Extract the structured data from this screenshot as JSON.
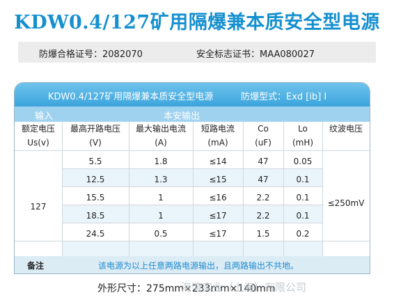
{
  "title": "KDW0.4/127矿用隔爆兼本质安全型电源",
  "certs": {
    "explosion_proof": "防爆合格证号：2082070",
    "safety_mark": "安全标志证书：MAA080027"
  },
  "table": {
    "header_name": "KDW0.4/127矿用隔爆兼本质安全型电源",
    "header_type": "防爆型式：Exd [ib] I",
    "input_label": "输入",
    "output_label": "本安输出",
    "columns": [
      [
        "额定电压",
        "Us(v)"
      ],
      [
        "最高开路电压",
        "(V)"
      ],
      [
        "最大输出电流",
        "(A)"
      ],
      [
        "短路电流",
        "(mA)"
      ],
      [
        "Co",
        "(uF)"
      ],
      [
        "Lo",
        "(mH)"
      ],
      [
        "纹波电压",
        ""
      ]
    ],
    "input_voltage": "127",
    "ripple": "≤250mV",
    "rows": [
      [
        "5.5",
        "1.8",
        "≤14",
        "47",
        "0.05"
      ],
      [
        "12.5",
        "1.3",
        "≤15",
        "47",
        "0.1"
      ],
      [
        "15.5",
        "1",
        "≤16",
        "2.2",
        "0.1"
      ],
      [
        "18.5",
        "1",
        "≤17",
        "2.2",
        "0.1"
      ],
      [
        "24.5",
        "0.5",
        "≤17",
        "1.5",
        "0.2"
      ]
    ],
    "note_label": "备注",
    "note_text": "该电源为以上任意两路电源输出，且两路输出不共地。"
  },
  "dimensions": "外形尺寸：275mm×233mm×140mm",
  "watermark": "海湾实业（上海）有限公司",
  "colors": {
    "accent": "#1590cf",
    "header": "#3ba4dc",
    "subheader": "#9ed2ef"
  }
}
